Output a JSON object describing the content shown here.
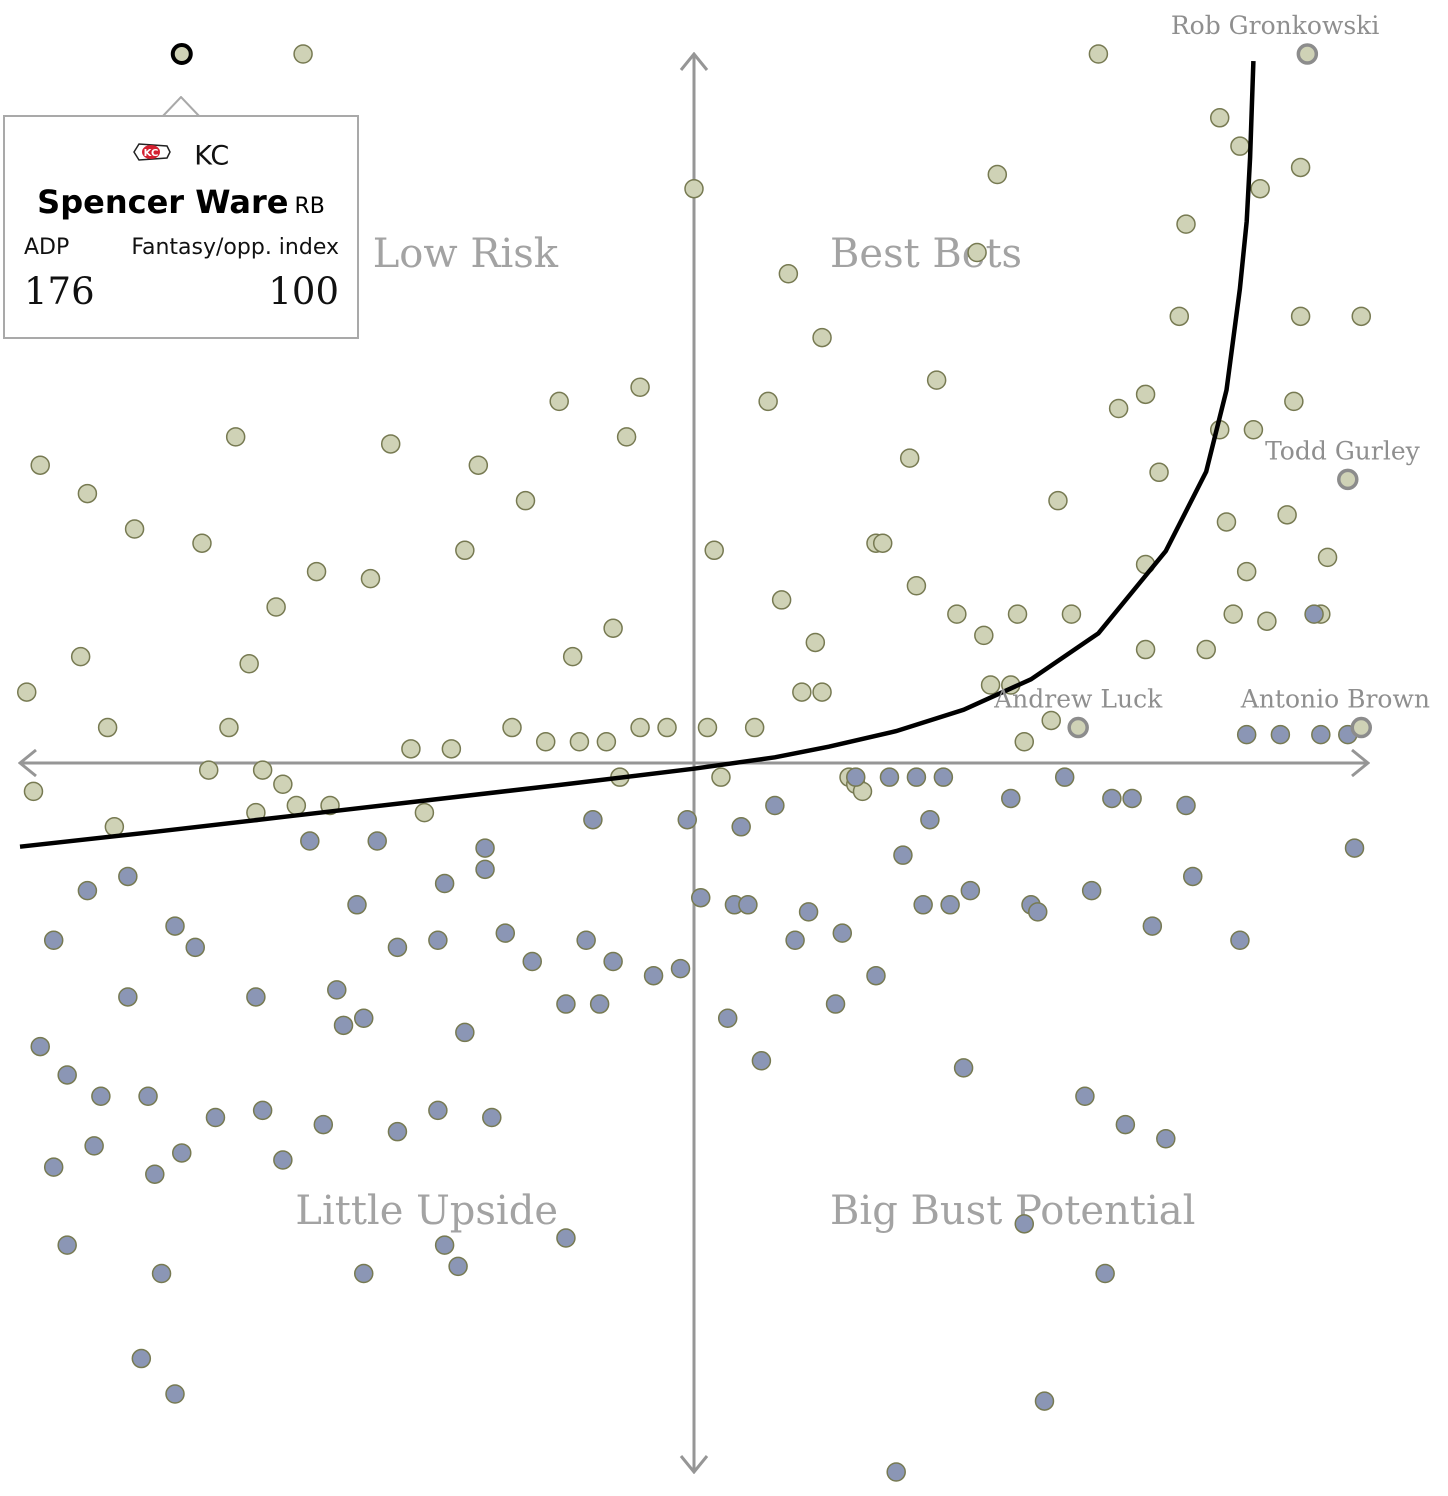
{
  "chart_data": {
    "type": "scatter",
    "title": "",
    "xlabel": "",
    "ylabel": "",
    "xlim": [
      -100,
      100
    ],
    "ylim": [
      -100,
      100
    ],
    "quadrants": {
      "top_left": "High Ceiling, Low Risk",
      "top_right": "Best Bets",
      "bottom_left": "Little Upside",
      "bottom_right": "Big Bust Potential"
    },
    "colors": {
      "above": "#cfd2b6",
      "below": "#8b96b5",
      "point_stroke": "#777a52",
      "axis": "#969696",
      "curve": "#000000"
    },
    "curve": [
      [
        -100,
        -11.8
      ],
      [
        -80,
        -9.7
      ],
      [
        -60,
        -7.5
      ],
      [
        -40,
        -5.3
      ],
      [
        -20,
        -3.1
      ],
      [
        0,
        -0.8
      ],
      [
        12,
        0.8
      ],
      [
        20,
        2.3
      ],
      [
        30,
        4.5
      ],
      [
        40,
        7.5
      ],
      [
        50,
        11.8
      ],
      [
        60,
        18.3
      ],
      [
        70,
        29.9
      ],
      [
        76,
        41.1
      ],
      [
        79,
        52.6
      ],
      [
        81,
        66.9
      ],
      [
        82,
        76.4
      ],
      [
        82.5,
        85.4
      ],
      [
        83,
        99
      ]
    ],
    "labeled_points": [
      {
        "label": "Rob Gronkowski",
        "x": 91,
        "y": 100
      },
      {
        "label": "Todd Gurley",
        "x": 97,
        "y": 40
      },
      {
        "label": "Andrew Luck",
        "x": 57,
        "y": 5
      },
      {
        "label": "Antonio Brown",
        "x": 99,
        "y": 5
      }
    ],
    "selected_point": {
      "x": -76,
      "y": 100
    },
    "points_above": [
      [
        -58,
        100
      ],
      [
        60,
        100
      ],
      [
        78,
        91
      ],
      [
        0,
        81
      ],
      [
        45,
        83
      ],
      [
        42,
        72
      ],
      [
        73,
        76
      ],
      [
        84,
        81
      ],
      [
        90,
        84
      ],
      [
        81,
        87
      ],
      [
        14,
        69
      ],
      [
        19,
        60
      ],
      [
        72,
        63
      ],
      [
        90,
        63
      ],
      [
        99,
        63
      ],
      [
        -20,
        51
      ],
      [
        -8,
        53
      ],
      [
        -10,
        46
      ],
      [
        11,
        51
      ],
      [
        36,
        54
      ],
      [
        63,
        50
      ],
      [
        67,
        52
      ],
      [
        78,
        47
      ],
      [
        83,
        47
      ],
      [
        89,
        51
      ],
      [
        -97,
        42
      ],
      [
        -90,
        38
      ],
      [
        -83,
        33
      ],
      [
        -73,
        31
      ],
      [
        -68,
        46
      ],
      [
        -45,
        45
      ],
      [
        -32,
        42
      ],
      [
        -25,
        37
      ],
      [
        -34,
        30
      ],
      [
        32,
        43
      ],
      [
        27,
        31
      ],
      [
        28,
        31
      ],
      [
        54,
        37
      ],
      [
        69,
        41
      ],
      [
        79,
        34
      ],
      [
        88,
        35
      ],
      [
        94,
        29
      ],
      [
        -56,
        27
      ],
      [
        -48,
        26
      ],
      [
        -62,
        22
      ],
      [
        -12,
        19
      ],
      [
        -18,
        15
      ],
      [
        3,
        30
      ],
      [
        33,
        25
      ],
      [
        13,
        23
      ],
      [
        18,
        17
      ],
      [
        39,
        21
      ],
      [
        43,
        18
      ],
      [
        48,
        21
      ],
      [
        56,
        21
      ],
      [
        67,
        28
      ],
      [
        82,
        27
      ],
      [
        85,
        20
      ],
      [
        93,
        21
      ],
      [
        -99,
        10
      ],
      [
        -91,
        15
      ],
      [
        -66,
        14
      ],
      [
        -87,
        5
      ],
      [
        -69,
        5
      ],
      [
        -42,
        2
      ],
      [
        -36,
        2
      ],
      [
        -27,
        5
      ],
      [
        -22,
        3
      ],
      [
        -17,
        3
      ],
      [
        -13,
        3
      ],
      [
        -8,
        5
      ],
      [
        -4,
        5
      ],
      [
        2,
        5
      ],
      [
        9,
        5
      ],
      [
        16,
        10
      ],
      [
        19,
        10
      ],
      [
        44,
        11
      ],
      [
        49,
        3
      ],
      [
        53,
        6
      ],
      [
        67,
        16
      ],
      [
        76,
        16
      ],
      [
        80,
        21
      ],
      [
        47,
        11
      ],
      [
        -72,
        -1
      ],
      [
        -64,
        -1
      ],
      [
        -98,
        -4
      ],
      [
        -59,
        -6
      ],
      [
        -54,
        -6
      ],
      [
        -61,
        -3
      ],
      [
        -40,
        -7
      ],
      [
        -11,
        -2
      ],
      [
        4,
        -2
      ],
      [
        23,
        -2
      ],
      [
        24,
        -3
      ],
      [
        25,
        -4
      ],
      [
        -86,
        -9
      ],
      [
        -65,
        -7
      ]
    ],
    "points_below": [
      [
        92,
        21
      ],
      [
        93,
        4
      ],
      [
        97,
        4
      ],
      [
        82,
        4
      ],
      [
        87,
        4
      ],
      [
        33,
        -2
      ],
      [
        37,
        -2
      ],
      [
        29,
        -2
      ],
      [
        24,
        -2
      ],
      [
        -57,
        -11
      ],
      [
        -47,
        -11
      ],
      [
        -31,
        -12
      ],
      [
        -15,
        -8
      ],
      [
        -1,
        -8
      ],
      [
        7,
        -9
      ],
      [
        12,
        -6
      ],
      [
        31,
        -13
      ],
      [
        35,
        -8
      ],
      [
        47,
        -5
      ],
      [
        55,
        -2
      ],
      [
        62,
        -5
      ],
      [
        65,
        -5
      ],
      [
        73,
        -6
      ],
      [
        98,
        -12
      ],
      [
        -90,
        -18
      ],
      [
        -84,
        -16
      ],
      [
        -95,
        -25
      ],
      [
        -77,
        -23
      ],
      [
        -74,
        -26
      ],
      [
        -50,
        -20
      ],
      [
        -37,
        -17
      ],
      [
        -31,
        -15
      ],
      [
        -38,
        -25
      ],
      [
        -44,
        -26
      ],
      [
        -28,
        -24
      ],
      [
        -24,
        -28
      ],
      [
        -16,
        -25
      ],
      [
        -12,
        -28
      ],
      [
        -6,
        -30
      ],
      [
        -2,
        -29
      ],
      [
        1,
        -19
      ],
      [
        6,
        -20
      ],
      [
        8,
        -20
      ],
      [
        17,
        -21
      ],
      [
        15,
        -25
      ],
      [
        22,
        -24
      ],
      [
        27,
        -30
      ],
      [
        21,
        -34
      ],
      [
        34,
        -20
      ],
      [
        38,
        -20
      ],
      [
        41,
        -18
      ],
      [
        50,
        -20
      ],
      [
        51,
        -21
      ],
      [
        59,
        -18
      ],
      [
        68,
        -23
      ],
      [
        74,
        -16
      ],
      [
        81,
        -25
      ],
      [
        -84,
        -33
      ],
      [
        -65,
        -33
      ],
      [
        -53,
        -32
      ],
      [
        -49,
        -36
      ],
      [
        -52,
        -37
      ],
      [
        -34,
        -38
      ],
      [
        -38,
        -49
      ],
      [
        -44,
        -52
      ],
      [
        -30,
        -50
      ],
      [
        -19,
        -34
      ],
      [
        -14,
        -34
      ],
      [
        -97,
        -40
      ],
      [
        -93,
        -44
      ],
      [
        -88,
        -47
      ],
      [
        -81,
        -47
      ],
      [
        -71,
        -50
      ],
      [
        -64,
        -49
      ],
      [
        -55,
        -51
      ],
      [
        -89,
        -54
      ],
      [
        -76,
        -55
      ],
      [
        -95,
        -57
      ],
      [
        -80,
        -58
      ],
      [
        -61,
        -56
      ],
      [
        5,
        -36
      ],
      [
        10,
        -42
      ],
      [
        40,
        -43
      ],
      [
        58,
        -47
      ],
      [
        64,
        -51
      ],
      [
        70,
        -53
      ],
      [
        -93,
        -68
      ],
      [
        -79,
        -72
      ],
      [
        -49,
        -72
      ],
      [
        -37,
        -68
      ],
      [
        -35,
        -71
      ],
      [
        -19,
        -67
      ],
      [
        49,
        -65
      ],
      [
        61,
        -72
      ],
      [
        -82,
        -84
      ],
      [
        -77,
        -89
      ],
      [
        52,
        -90
      ],
      [
        30,
        -100
      ]
    ]
  }
}
